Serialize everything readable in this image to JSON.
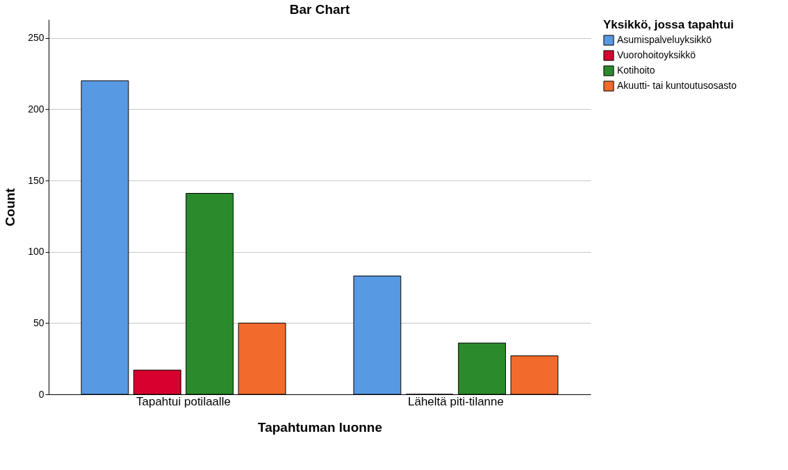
{
  "chart_data": {
    "type": "bar",
    "title": "Bar Chart",
    "xlabel": "Tapahtuman luonne",
    "ylabel": "Count",
    "legend_title": "Yksikkö, jossa tapahtui",
    "categories": [
      "Tapahtui potilaalle",
      "Läheltä piti-tilanne"
    ],
    "series": [
      {
        "name": "Asumispalveluyksikkö",
        "color": "#5899e3",
        "values": [
          220,
          83
        ]
      },
      {
        "name": "Vuorohoitoyksikkö",
        "color": "#d6002f",
        "values": [
          17,
          0
        ]
      },
      {
        "name": "Kotihoito",
        "color": "#2b8a2b",
        "values": [
          141,
          36
        ]
      },
      {
        "name": "Akuutti- tai kuntoutusosasto",
        "color": "#f26a2c",
        "values": [
          50,
          27
        ]
      }
    ],
    "ylim": [
      0,
      263
    ],
    "yticks": [
      0,
      50,
      100,
      150,
      200,
      250
    ],
    "grid": "y",
    "legend": "top right"
  }
}
